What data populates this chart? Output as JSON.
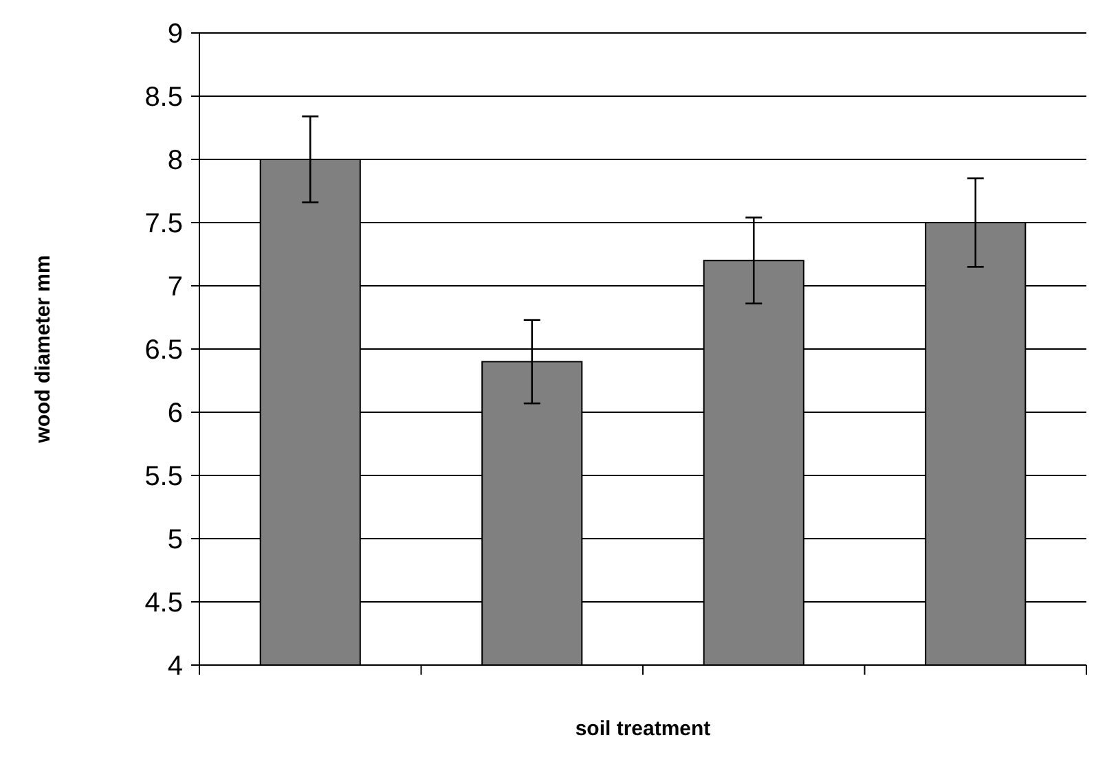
{
  "chart_data": {
    "type": "bar",
    "xlabel": "soil treatment",
    "ylabel": "wood diameter mm",
    "categories": [
      null,
      null,
      null,
      null
    ],
    "values": [
      8,
      6.4,
      7.2,
      7.5
    ],
    "errors": [
      0.34,
      0.33,
      0.34,
      0.35
    ],
    "color": "#808080",
    "ylim": [
      4,
      9
    ],
    "yticks": [
      4,
      4.5,
      5,
      5.5,
      6,
      6.5,
      7,
      7.5,
      8,
      8.5,
      9
    ],
    "grid": "y"
  }
}
